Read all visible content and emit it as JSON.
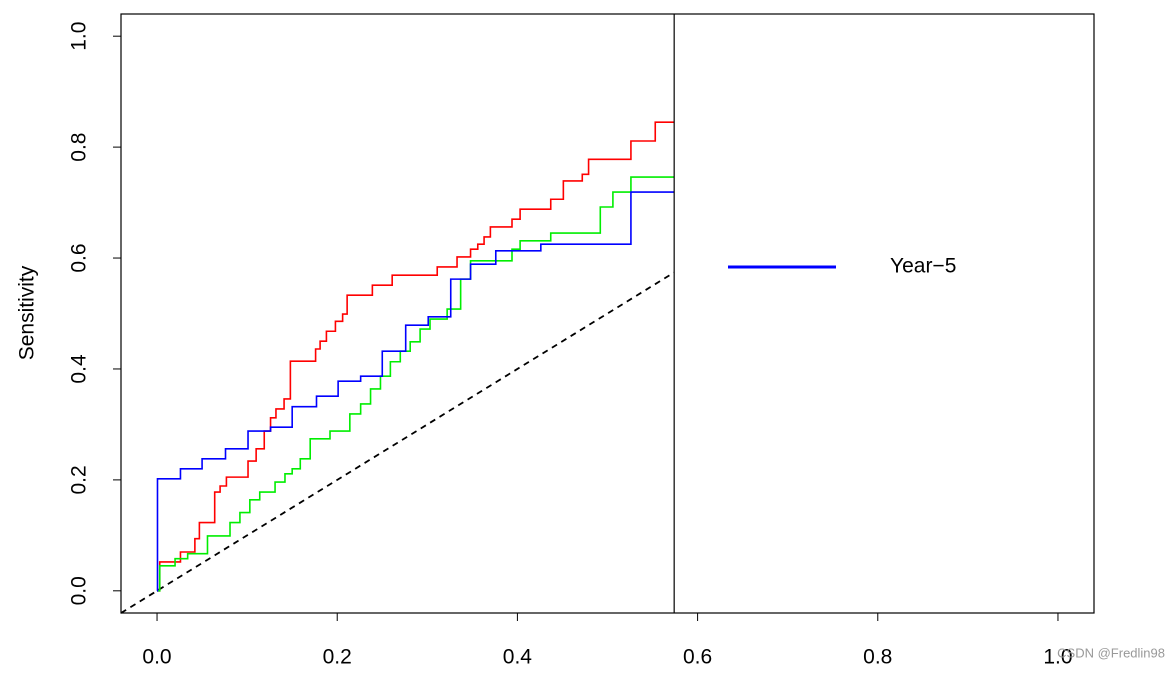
{
  "chart_data": {
    "type": "step-line",
    "y_label": "Sensitivity",
    "xlim": [
      -0.04,
      1.04
    ],
    "ylim": [
      -0.04,
      1.04
    ],
    "xticks": [
      {
        "value": 0,
        "label": "0.0"
      },
      0.2,
      0.4,
      0.6,
      0.8,
      {
        "value": 1,
        "label": "1.0"
      }
    ],
    "yticks": [
      {
        "value": 0,
        "label": "0.0"
      },
      0.2,
      0.4,
      0.6,
      0.8,
      {
        "value": 1,
        "label": "1.0"
      }
    ],
    "vline": 0.574,
    "series": [
      {
        "color": "#ff0000",
        "x": [
          0,
          0.003,
          0.026,
          0.042,
          0.047,
          0.064,
          0.07,
          0.077,
          0.101,
          0.11,
          0.119,
          0.126,
          0.132,
          0.141,
          0.148,
          0.176,
          0.181,
          0.188,
          0.198,
          0.206,
          0.211,
          0.239,
          0.261,
          0.311,
          0.333,
          0.348,
          0.356,
          0.363,
          0.37,
          0.394,
          0.403,
          0.437,
          0.451,
          0.472,
          0.479,
          0.526,
          0.553
        ],
        "y": [
          0,
          0.052,
          0.07,
          0.094,
          0.123,
          0.178,
          0.189,
          0.205,
          0.234,
          0.256,
          0.288,
          0.312,
          0.328,
          0.346,
          0.414,
          0.436,
          0.45,
          0.468,
          0.486,
          0.499,
          0.533,
          0.551,
          0.569,
          0.584,
          0.602,
          0.616,
          0.625,
          0.638,
          0.656,
          0.67,
          0.688,
          0.706,
          0.739,
          0.751,
          0.778,
          0.811,
          0.845
        ]
      },
      {
        "color": "#00ee00",
        "x": [
          0,
          0.003,
          0.02,
          0.034,
          0.056,
          0.081,
          0.092,
          0.103,
          0.114,
          0.131,
          0.142,
          0.15,
          0.159,
          0.17,
          0.192,
          0.214,
          0.226,
          0.237,
          0.248,
          0.259,
          0.27,
          0.281,
          0.292,
          0.303,
          0.322,
          0.337,
          0.348,
          0.394,
          0.403,
          0.437,
          0.492,
          0.506,
          0.526
        ],
        "y": [
          0,
          0.045,
          0.058,
          0.067,
          0.099,
          0.123,
          0.141,
          0.164,
          0.178,
          0.196,
          0.211,
          0.22,
          0.238,
          0.274,
          0.288,
          0.319,
          0.337,
          0.364,
          0.387,
          0.413,
          0.432,
          0.449,
          0.472,
          0.49,
          0.508,
          0.562,
          0.595,
          0.616,
          0.631,
          0.645,
          0.692,
          0.719,
          0.746
        ]
      },
      {
        "name": "Year−5",
        "color": "#0000ff",
        "x": [
          0,
          0.0005,
          0.026,
          0.05,
          0.076,
          0.101,
          0.126,
          0.15,
          0.177,
          0.201,
          0.226,
          0.25,
          0.276,
          0.301,
          0.326,
          0.348,
          0.376,
          0.426,
          0.526
        ],
        "y": [
          0,
          0.202,
          0.22,
          0.238,
          0.256,
          0.288,
          0.295,
          0.332,
          0.351,
          0.378,
          0.387,
          0.432,
          0.479,
          0.494,
          0.562,
          0.589,
          0.613,
          0.625,
          0.719
        ]
      }
    ],
    "watermark": "CSDN @Fredlin98"
  }
}
